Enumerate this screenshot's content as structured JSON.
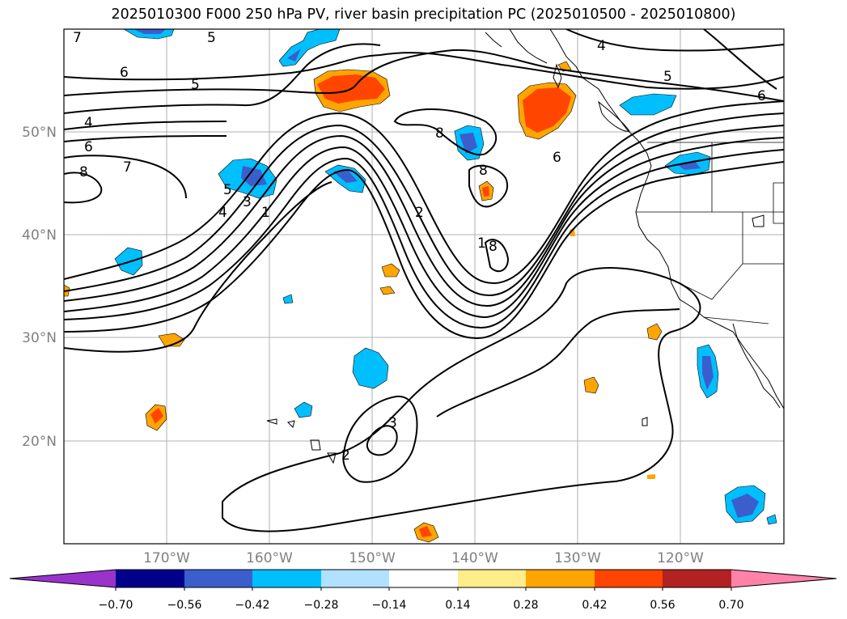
{
  "title": "2025010300 F000 250 hPa PV, river basin precipitation PC (2025010500 - 2025010800)",
  "lat_labels": [
    "50°N",
    "40°N",
    "30°N",
    "20°N"
  ],
  "lon_labels": [
    "170°W",
    "160°W",
    "150°W",
    "140°W",
    "130°W",
    "120°W"
  ],
  "colorbar": {
    "ticks": [
      "−0.70",
      "−0.56",
      "−0.42",
      "−0.28",
      "−0.14",
      "0.14",
      "0.28",
      "0.42",
      "0.56",
      "0.70"
    ],
    "colors": [
      "#9933cc",
      "#00008b",
      "#3a5fcd",
      "#00bfff",
      "#b0e2ff",
      "#ffffff",
      "#ffec8b",
      "#ffa500",
      "#ff4500",
      "#b22222",
      "#ff82ab"
    ]
  },
  "contour_labels": [
    "7",
    "5",
    "6",
    "5",
    "4",
    "6",
    "8",
    "7",
    "5",
    "4",
    "3",
    "1",
    "2",
    "8",
    "8",
    "1",
    "8",
    "6",
    "4",
    "5",
    "6",
    "2",
    "3"
  ],
  "colors": {
    "neg_light": "#00bfff",
    "neg_dark": "#3a5fcd",
    "pos_orange": "#ffa500",
    "pos_red": "#ff4500"
  }
}
